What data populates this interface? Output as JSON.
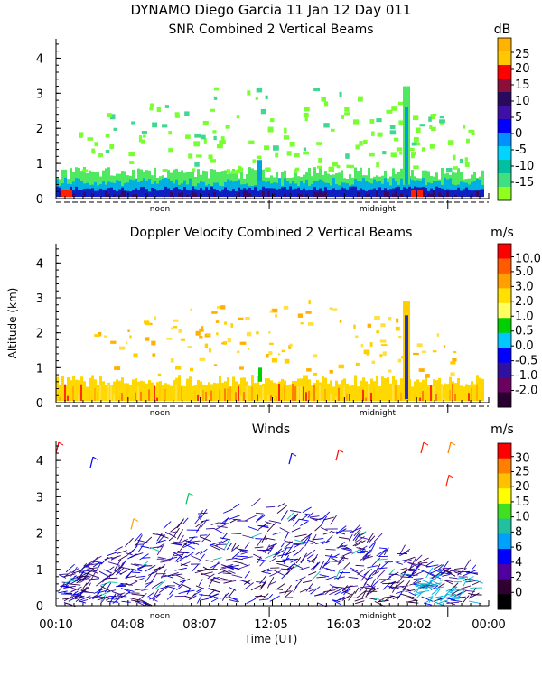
{
  "header": {
    "line1": "DYNAMO Diego Garcia  11 Jan 12 Day 011"
  },
  "y_axis_title": "Altitude (km)",
  "x_axis_title": "Time (UT)",
  "chart_data": [
    {
      "type": "heatmap",
      "title": "SNR Combined 2 Vertical Beams",
      "unit": "dB",
      "ylim": [
        0,
        4.5
      ],
      "yticks": [
        0,
        1,
        2,
        3,
        4
      ],
      "time_markers": [
        "noon",
        "midnight"
      ],
      "colorbar_labels": [
        "25",
        "20",
        "15",
        "10",
        "5",
        "0",
        "-5",
        "-10",
        "-15"
      ],
      "colorbar_colors": [
        "#ffb300",
        "#ffc800",
        "#ff0000",
        "#8b0f3a",
        "#2a0a5e",
        "#3f10a8",
        "#0000ff",
        "#0090ff",
        "#00d4ff",
        "#00c0a0",
        "#40e080",
        "#90ff20"
      ],
      "description_of_field": "dense low-level echo 0–0.8 km all day, scattered returns 1–2.5 km, plume to ~3.2 km near 19:30 UT"
    },
    {
      "type": "heatmap",
      "title": "Doppler Velocity Combined 2 Vertical Beams",
      "unit": "m/s",
      "ylim": [
        0,
        4.5
      ],
      "yticks": [
        0,
        1,
        2,
        3,
        4
      ],
      "time_markers": [
        "noon",
        "midnight"
      ],
      "colorbar_labels": [
        "10.0",
        "5.0",
        "3.0",
        "2.0",
        "1.0",
        "0.5",
        "0.0",
        "-0.5",
        "-1.0",
        "-2.0"
      ],
      "colorbar_colors": [
        "#ff0000",
        "#ff5a00",
        "#ffa000",
        "#ffe000",
        "#ffff60",
        "#00d000",
        "#00c8ff",
        "#0000ff",
        "#3010a0",
        "#6a0060",
        "#2a0030"
      ]
    },
    {
      "type": "scatter",
      "subtype": "wind-barbs",
      "title": "Winds",
      "unit": "m/s",
      "ylim": [
        0,
        4.5
      ],
      "yticks": [
        0,
        1,
        2,
        3,
        4
      ],
      "x_tick_labels": [
        "00:10",
        "04:08",
        "08:07",
        "12:05",
        "16:03",
        "20:02",
        "00:00"
      ],
      "time_markers": [
        "noon",
        "midnight"
      ],
      "colorbar_labels": [
        "30",
        "25",
        "20",
        "15",
        "10",
        "8",
        "6",
        "4",
        "2",
        "0"
      ],
      "colorbar_colors": [
        "#ff0000",
        "#ff8000",
        "#ffc000",
        "#ffff00",
        "#40e020",
        "#20c0a0",
        "#00a0ff",
        "#0000ff",
        "#5000a0",
        "#300030",
        "#000000"
      ]
    }
  ]
}
